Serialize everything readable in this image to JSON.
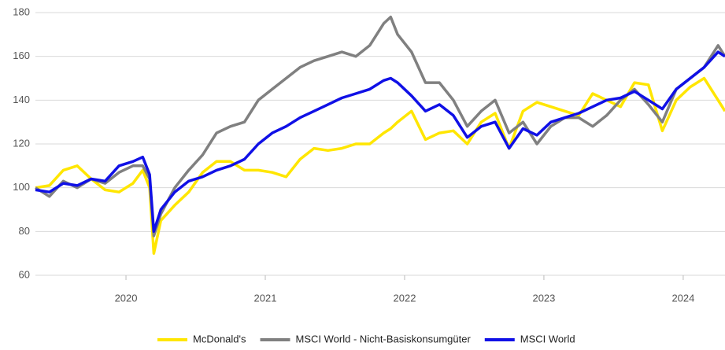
{
  "chart_data": {
    "type": "line",
    "x": [
      2019.35,
      2019.45,
      2019.55,
      2019.65,
      2019.75,
      2019.85,
      2019.95,
      2020.05,
      2020.12,
      2020.17,
      2020.2,
      2020.25,
      2020.35,
      2020.45,
      2020.55,
      2020.65,
      2020.75,
      2020.85,
      2020.95,
      2021.05,
      2021.15,
      2021.25,
      2021.35,
      2021.45,
      2021.55,
      2021.65,
      2021.75,
      2021.85,
      2021.9,
      2021.95,
      2022.05,
      2022.15,
      2022.25,
      2022.35,
      2022.45,
      2022.55,
      2022.65,
      2022.75,
      2022.85,
      2022.95,
      2023.05,
      2023.15,
      2023.25,
      2023.35,
      2023.45,
      2023.55,
      2023.65,
      2023.75,
      2023.85,
      2023.95,
      2024.05,
      2024.15,
      2024.25,
      2024.3
    ],
    "series": [
      {
        "name": "McDonald's",
        "color": "#ffe600",
        "values": [
          100,
          101,
          108,
          110,
          104,
          99,
          98,
          102,
          108,
          100,
          70,
          85,
          92,
          98,
          107,
          112,
          112,
          108,
          108,
          107,
          105,
          113,
          118,
          117,
          118,
          120,
          120,
          125,
          127,
          130,
          135,
          122,
          125,
          126,
          120,
          130,
          134,
          118,
          135,
          139,
          137,
          135,
          133,
          143,
          140,
          137,
          148,
          147,
          126,
          140,
          146,
          150,
          140,
          135
        ]
      },
      {
        "name": "MSCI World - Nicht-Basiskonsumgüter",
        "color": "#808080",
        "values": [
          100,
          96,
          103,
          100,
          104,
          102,
          107,
          110,
          110,
          104,
          78,
          88,
          100,
          108,
          115,
          125,
          128,
          130,
          140,
          145,
          150,
          155,
          158,
          160,
          162,
          160,
          165,
          175,
          178,
          170,
          162,
          148,
          148,
          140,
          128,
          135,
          140,
          125,
          130,
          120,
          128,
          132,
          132,
          128,
          133,
          140,
          145,
          138,
          130,
          145,
          150,
          155,
          165,
          160
        ]
      },
      {
        "name": "MSCI World",
        "color": "#1010e6",
        "values": [
          99,
          98,
          102,
          101,
          104,
          103,
          110,
          112,
          114,
          106,
          80,
          90,
          98,
          103,
          105,
          108,
          110,
          113,
          120,
          125,
          128,
          132,
          135,
          138,
          141,
          143,
          145,
          149,
          150,
          148,
          142,
          135,
          138,
          133,
          123,
          128,
          130,
          118,
          127,
          124,
          130,
          132,
          134,
          137,
          140,
          141,
          144,
          140,
          136,
          145,
          150,
          155,
          162,
          160
        ]
      }
    ],
    "xlim": [
      2019.35,
      2024.3
    ],
    "xticks": [
      2020,
      2021,
      2022,
      2023,
      2024
    ],
    "ylim": [
      60,
      180
    ],
    "yticks": [
      60,
      80,
      100,
      120,
      140,
      160,
      180
    ],
    "grid": true
  }
}
